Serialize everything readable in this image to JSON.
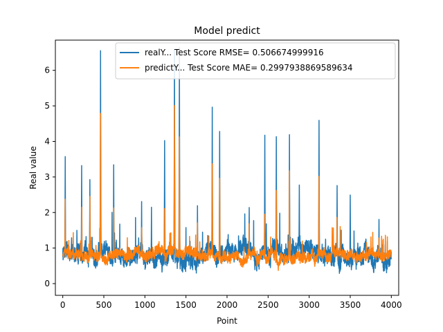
{
  "chart_data": {
    "type": "line",
    "title": "Model predict",
    "xlabel": "Point",
    "ylabel": "Real value",
    "xlim": [
      -90,
      4090
    ],
    "ylim": [
      -0.33,
      6.85
    ],
    "xticks": [
      0,
      500,
      1000,
      1500,
      2000,
      2500,
      3000,
      3500,
      4000
    ],
    "yticks": [
      0,
      1,
      2,
      3,
      4,
      5,
      6
    ],
    "grid": false,
    "legend": "upper-right",
    "series": [
      {
        "name": "realY... Test Score RMSE= 0.506674999916",
        "color": "#1f77b4",
        "baseline": 0.85,
        "noise": 0.45,
        "spikes": [
          [
            30,
            3.58
          ],
          [
            230,
            3.33
          ],
          [
            330,
            2.9
          ],
          [
            460,
            6.62
          ],
          [
            620,
            3.3
          ],
          [
            960,
            2.25
          ],
          [
            1080,
            2.15
          ],
          [
            1240,
            4.08
          ],
          [
            1360,
            6.6
          ],
          [
            1420,
            6.6
          ],
          [
            1640,
            2.2
          ],
          [
            1820,
            4.92
          ],
          [
            1910,
            4.3
          ],
          [
            2270,
            2.2
          ],
          [
            2460,
            4.15
          ],
          [
            2600,
            4.18
          ],
          [
            2760,
            4.15
          ],
          [
            2880,
            2.8
          ],
          [
            3120,
            4.6
          ],
          [
            3340,
            2.75
          ],
          [
            3500,
            2.5
          ],
          [
            3850,
            1.8
          ]
        ]
      },
      {
        "name": "predictY... Test Score MAE= 0.2997938869589634",
        "color": "#ff7f0e",
        "baseline": 0.8,
        "noise": 0.25,
        "spikes": [
          [
            30,
            2.35
          ],
          [
            230,
            2.08
          ],
          [
            330,
            2.5
          ],
          [
            460,
            4.75
          ],
          [
            620,
            2.2
          ],
          [
            960,
            1.6
          ],
          [
            1240,
            2.05
          ],
          [
            1360,
            4.95
          ],
          [
            1420,
            4.15
          ],
          [
            1640,
            1.7
          ],
          [
            1820,
            3.4
          ],
          [
            1910,
            2.9
          ],
          [
            2270,
            1.7
          ],
          [
            2460,
            2.0
          ],
          [
            2600,
            2.65
          ],
          [
            2760,
            3.1
          ],
          [
            3120,
            2.98
          ],
          [
            3340,
            1.9
          ],
          [
            3850,
            1.35
          ]
        ]
      }
    ]
  }
}
